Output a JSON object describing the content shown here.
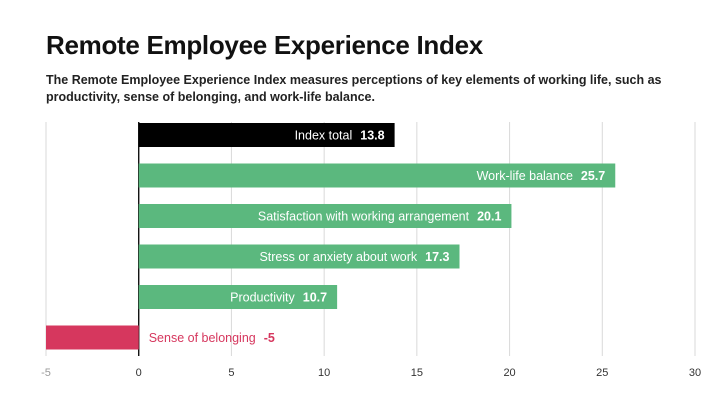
{
  "header": {
    "title": "Remote Employee Experience Index",
    "subtitle": "The Remote Employee Experience Index measures perceptions of key elements of working life, such as productivity, sense of belonging, and work-life balance."
  },
  "colors": {
    "total": "#000000",
    "positive": "#5bb87e",
    "negative": "#d6375e",
    "grid": "#d9d9d9",
    "axis": "#111111",
    "tick_text": "#333333",
    "tick_text_muted": "#9a9a9a"
  },
  "chart_data": {
    "type": "bar",
    "orientation": "horizontal",
    "title": "Remote Employee Experience Index",
    "xlabel": "",
    "ylabel": "",
    "xlim": [
      -5,
      30
    ],
    "xticks": [
      -5,
      0,
      5,
      10,
      15,
      20,
      25,
      30
    ],
    "grid": true,
    "legend": "none",
    "categories": [
      "Index total",
      "Work-life balance",
      "Satisfaction with working arrangement",
      "Stress or anxiety about work",
      "Productivity",
      "Sense of belonging"
    ],
    "values": [
      13.8,
      25.7,
      20.1,
      17.3,
      10.7,
      -5
    ],
    "value_labels": [
      "13.8",
      "25.7",
      "20.1",
      "17.3",
      "10.7",
      "-5"
    ],
    "bar_roles": [
      "total",
      "positive",
      "positive",
      "positive",
      "positive",
      "negative"
    ]
  }
}
